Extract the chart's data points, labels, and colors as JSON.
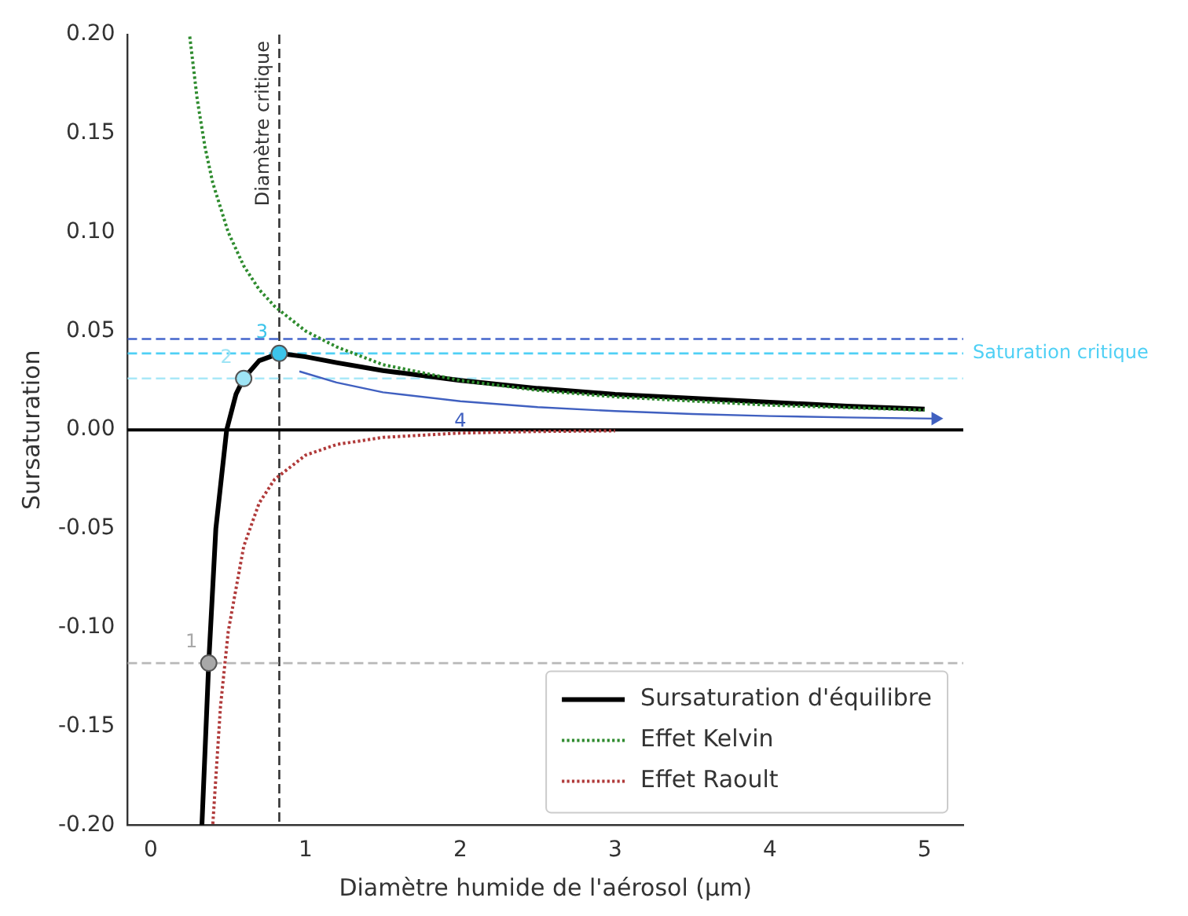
{
  "chart_data": {
    "type": "line",
    "xlabel": "Diamètre humide de l'aérosol (µm)",
    "ylabel": "Sursaturation",
    "xlim": [
      -0.15,
      5.25
    ],
    "ylim": [
      -0.2,
      0.2
    ],
    "xticks": [
      0,
      1,
      2,
      3,
      4,
      5
    ],
    "yticks": [
      {
        "value": -0.2,
        "label": "-0.20"
      },
      {
        "value": -0.15,
        "label": "-0.15"
      },
      {
        "value": -0.1,
        "label": "-0.10"
      },
      {
        "value": -0.05,
        "label": "-0.05"
      },
      {
        "value": 0,
        "label": "0.00"
      },
      {
        "value": 0.05,
        "label": "0.05"
      },
      {
        "value": 0.1,
        "label": "0.10"
      },
      {
        "value": 0.15,
        "label": "0.15"
      },
      {
        "value": 0.2,
        "label": "0.20"
      }
    ],
    "grid": false,
    "legend": "bottom right",
    "series": [
      {
        "name": "Sursaturation d'équilibre",
        "color": "#000000",
        "line_style": "solid",
        "x": [
          0.33,
          0.374,
          0.42,
          0.49,
          0.55,
          0.6,
          0.7,
          0.83,
          1.0,
          1.2,
          1.5,
          2,
          2.5,
          3,
          3.5,
          4,
          4.5,
          5
        ],
        "values": [
          -0.2,
          -0.118,
          -0.05,
          0,
          0.018,
          0.026,
          0.035,
          0.0387,
          0.037,
          0.034,
          0.03,
          0.025,
          0.021,
          0.018,
          0.016,
          0.014,
          0.012,
          0.0105
        ]
      },
      {
        "name": "Effet Kelvin",
        "color": "#2e8b2e",
        "line_style": "dotted",
        "x": [
          0.25,
          0.3,
          0.35,
          0.4,
          0.5,
          0.6,
          0.7,
          0.8,
          1,
          1.2,
          1.5,
          2,
          2.5,
          3,
          4,
          5
        ],
        "values": [
          0.2,
          0.167,
          0.143,
          0.125,
          0.1,
          0.083,
          0.071,
          0.0625,
          0.05,
          0.042,
          0.033,
          0.025,
          0.02,
          0.0167,
          0.0125,
          0.01
        ]
      },
      {
        "name": "Effet Raoult",
        "color": "#b03a3a",
        "line_style": "dotted",
        "x": [
          0.4,
          0.45,
          0.5,
          0.6,
          0.7,
          0.8,
          1,
          1.2,
          1.5,
          2,
          2.5,
          3
        ],
        "values": [
          -0.2,
          -0.14,
          -0.102,
          -0.059,
          -0.037,
          -0.025,
          -0.0128,
          -0.0074,
          -0.0038,
          -0.0016,
          -0.0008,
          -0.0005
        ]
      },
      {
        "color": "#4060c0",
        "line_style": "solid",
        "x": [
          0.96,
          1.2,
          1.5,
          2,
          2.5,
          3,
          3.5,
          4,
          4.5,
          5.07
        ],
        "values": [
          0.0296,
          0.024,
          0.019,
          0.0145,
          0.0115,
          0.0095,
          0.008,
          0.007,
          0.0063,
          0.0057
        ]
      },
      {
        "type": "scatter",
        "marker": "circle",
        "colors": [
          "#a8a8a8",
          "#9ee4f5",
          "#3cc4ea"
        ],
        "x": [
          0.374,
          0.6,
          0.83
        ],
        "values": [
          -0.118,
          0.026,
          0.0387
        ]
      }
    ],
    "ref_lines": [
      {
        "axis": "x",
        "value": 0.83,
        "label": "Diamètre critique",
        "color": "#333333",
        "line_style": "dashed"
      },
      {
        "axis": "y",
        "value": 0,
        "color": "#000000",
        "line_style": "solid"
      },
      {
        "axis": "y",
        "value": 0.046,
        "color": "#4466cc",
        "line_style": "dashed"
      },
      {
        "axis": "y",
        "value": 0.0387,
        "label": "Saturation critique",
        "color": "#4fd0f5",
        "line_style": "dashed"
      },
      {
        "axis": "y",
        "value": 0.026,
        "color": "#a8e8f8",
        "line_style": "dashed"
      },
      {
        "axis": "y",
        "value": -0.118,
        "color": "#b8b8b8",
        "line_style": "dashed"
      }
    ],
    "annotations": [
      {
        "text": "1",
        "x": 0.374,
        "y": -0.118
      },
      {
        "text": "2",
        "x": 0.6,
        "y": 0.026
      },
      {
        "text": "3",
        "x": 0.83,
        "y": 0.0387
      },
      {
        "text": "4",
        "x": 2,
        "y": 0.0145
      }
    ]
  }
}
